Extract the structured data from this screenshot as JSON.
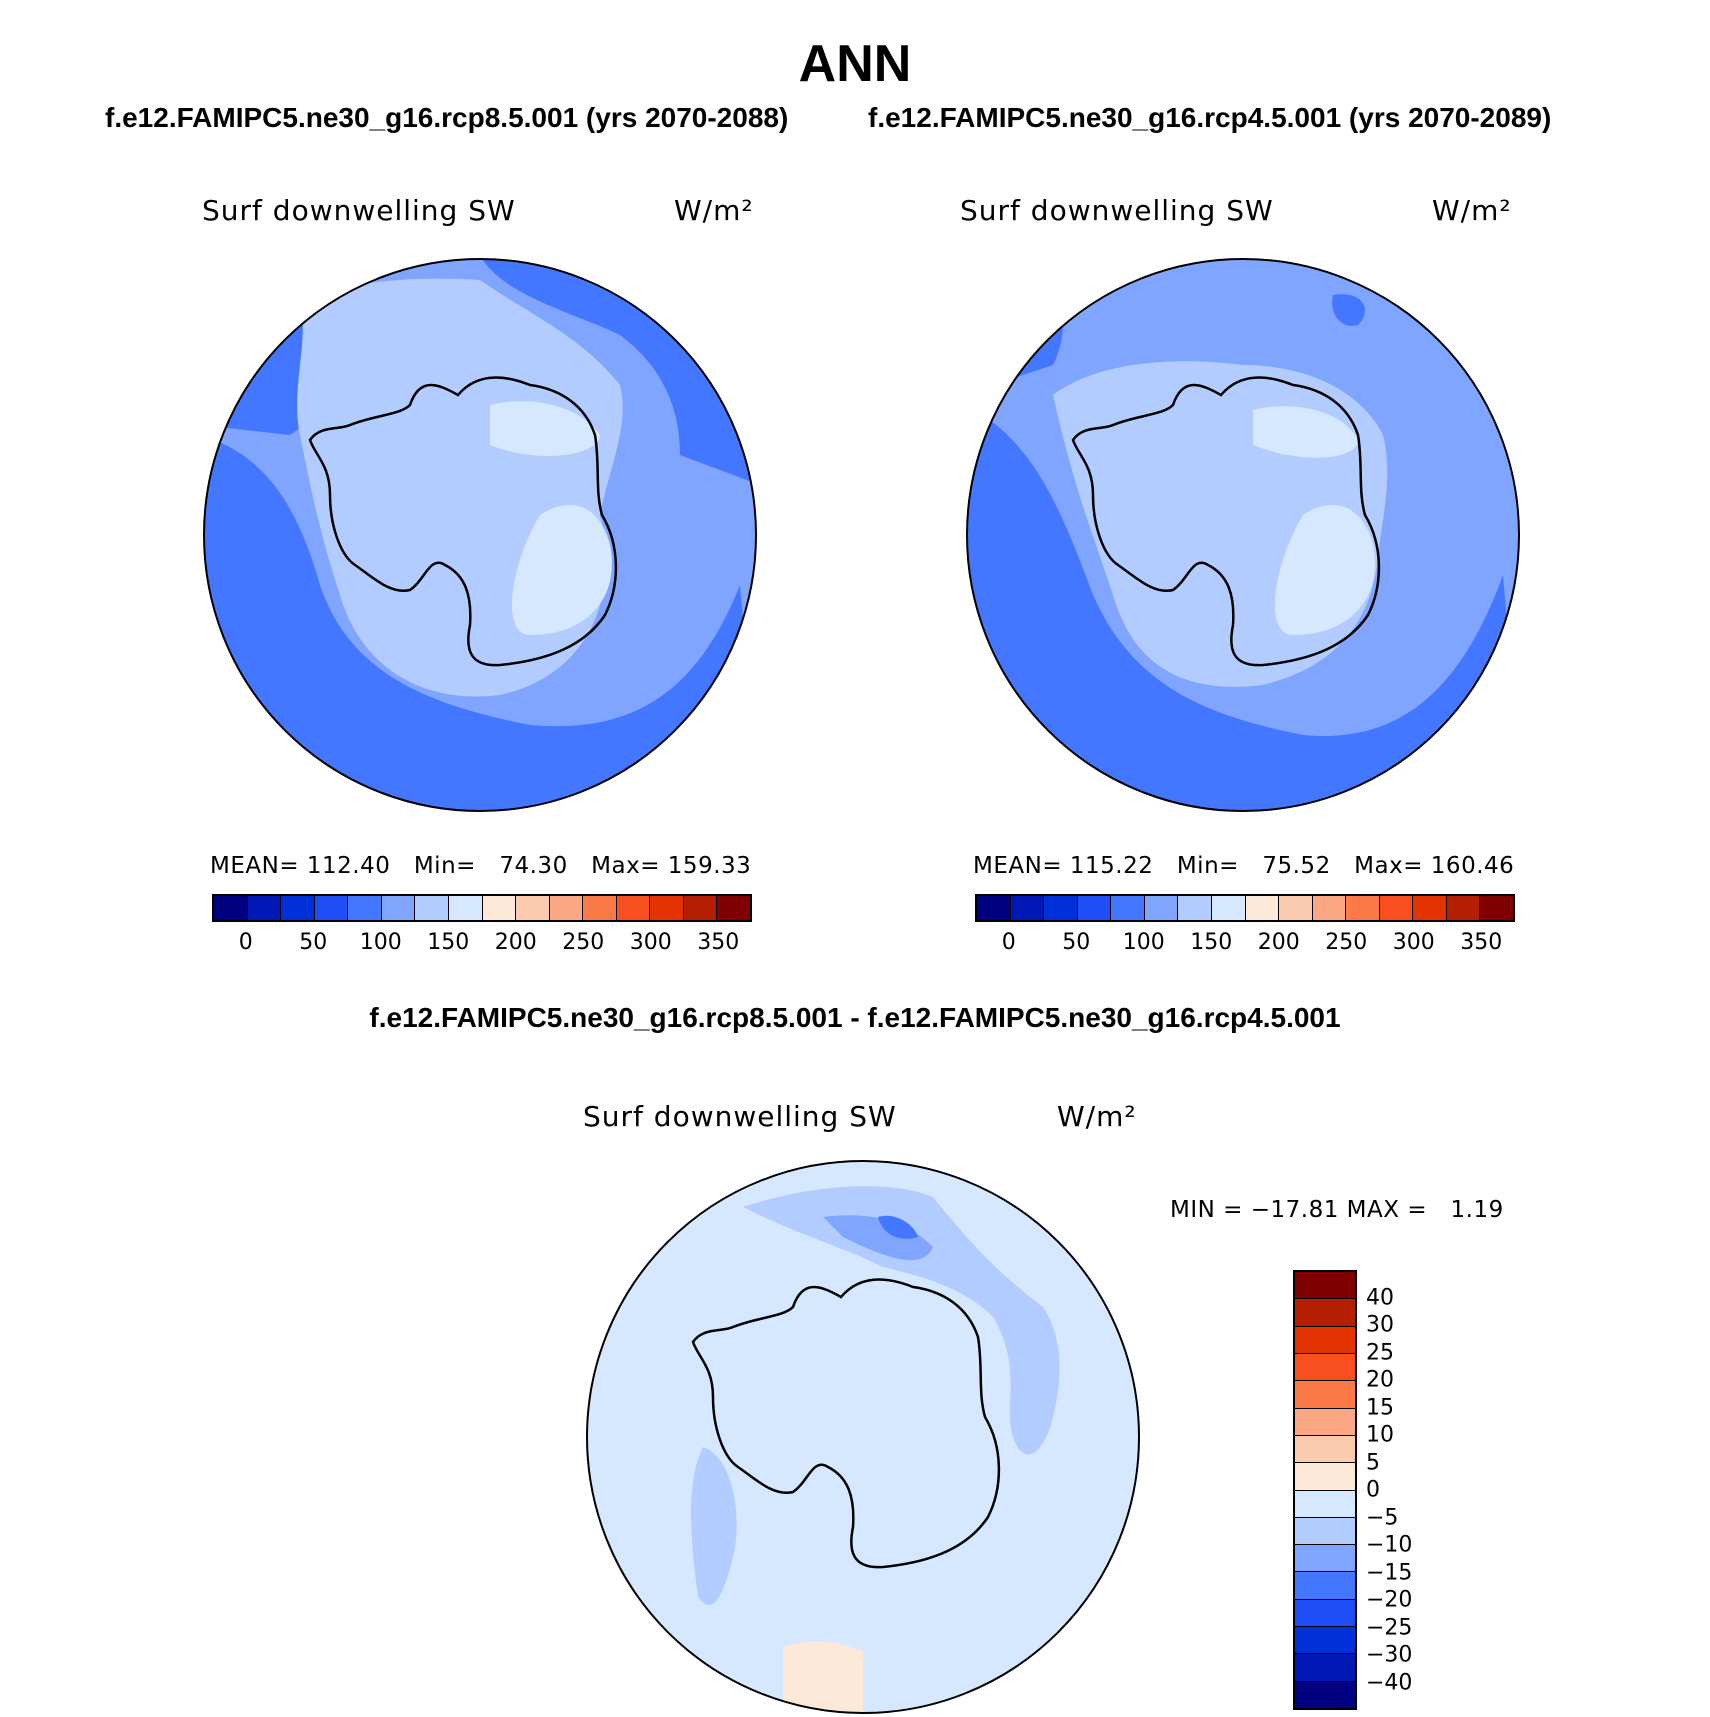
{
  "title": "ANN",
  "panels": [
    {
      "case": "f.e12.FAMIPC5.ne30_g16.rcp8.5.001 (yrs 2070-2088)",
      "variable": "Surf downwelling SW",
      "units": "W/m²",
      "stats": {
        "mean_label": "MEAN=",
        "mean": "112.40",
        "min_label": "Min=",
        "min": "74.30",
        "max_label": "Max=",
        "max": "159.33"
      }
    },
    {
      "case": "f.e12.FAMIPC5.ne30_g16.rcp4.5.001 (yrs 2070-2089)",
      "variable": "Surf downwelling SW",
      "units": "W/m²",
      "stats": {
        "mean_label": "MEAN=",
        "mean": "115.22",
        "min_label": "Min=",
        "min": "75.52",
        "max_label": "Max=",
        "max": "160.46"
      }
    }
  ],
  "diff_panel": {
    "case": "f.e12.FAMIPC5.ne30_g16.rcp8.5.001 - f.e12.FAMIPC5.ne30_g16.rcp4.5.001",
    "variable": "Surf downwelling SW",
    "units": "W/m²",
    "stats": {
      "min_label": "MIN =",
      "min": "−17.81",
      "max_label": "MAX =",
      "max": "1.19"
    }
  },
  "colorbar_main": {
    "colors": [
      "#000080",
      "#0018b4",
      "#0030d8",
      "#1f4ef7",
      "#4477ff",
      "#7fa5ff",
      "#b3ccff",
      "#d6e8ff",
      "#fde9d7",
      "#fccaaf",
      "#fba783",
      "#fc7a47",
      "#f94f1e",
      "#e33300",
      "#b31f00",
      "#800000"
    ],
    "ticks": [
      "0",
      "50",
      "100",
      "150",
      "200",
      "250",
      "300",
      "350"
    ]
  },
  "colorbar_diff": {
    "colors_top_to_bottom": [
      "#800000",
      "#b31f00",
      "#e33300",
      "#f94f1e",
      "#fc7a47",
      "#fba783",
      "#fccaaf",
      "#fde9d7",
      "#d6e8ff",
      "#b3ccff",
      "#7fa5ff",
      "#4477ff",
      "#1f4ef7",
      "#0030d8",
      "#0018b4",
      "#000080"
    ],
    "ticks": [
      "40",
      "30",
      "25",
      "20",
      "15",
      "10",
      "5",
      "0",
      "−5",
      "−10",
      "−15",
      "−20",
      "−25",
      "−30",
      "−40"
    ]
  }
}
